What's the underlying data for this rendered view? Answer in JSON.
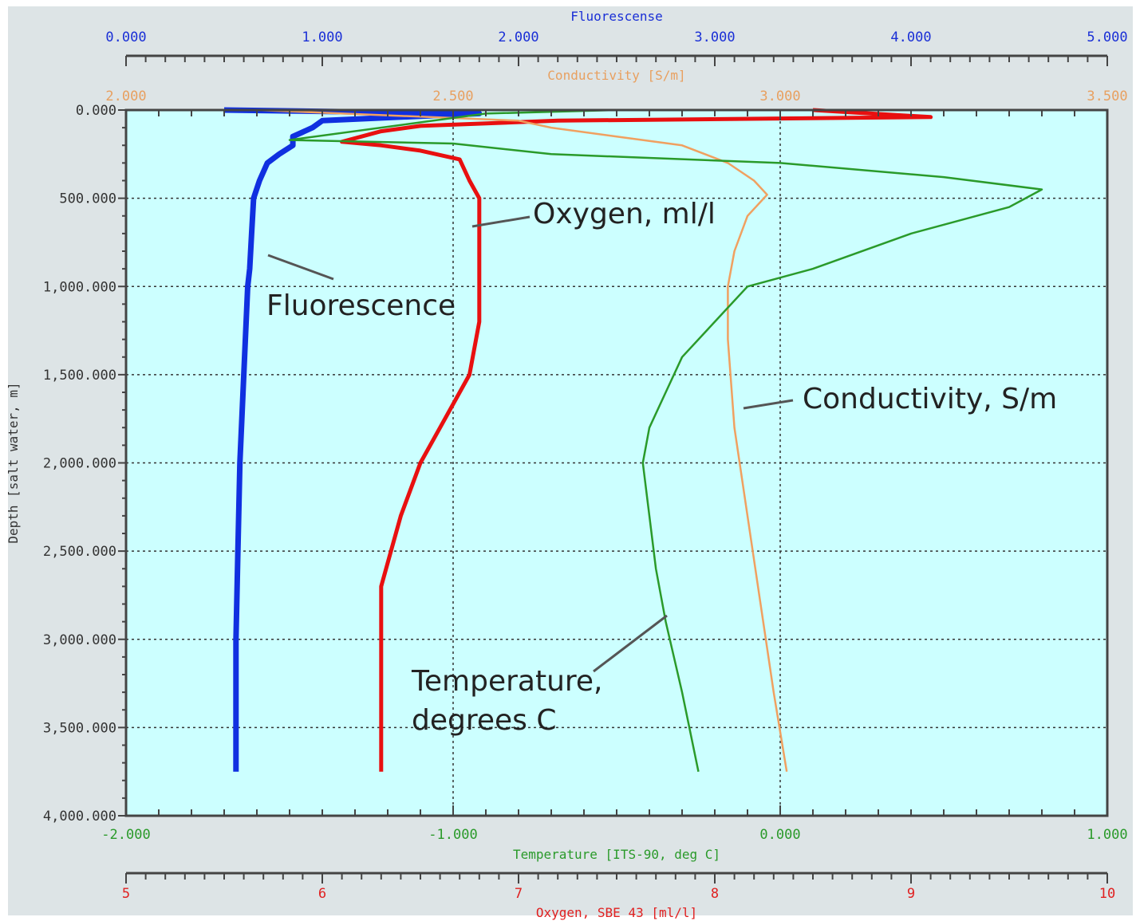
{
  "chart_data": {
    "type": "line",
    "y_axis": {
      "label": "Depth [salt water, m]",
      "range": [
        0,
        4000
      ],
      "inverted": true,
      "ticks": [
        "0.000",
        "500.000",
        "1,000.000",
        "1,500.000",
        "2,000.000",
        "2,500.000",
        "3,000.000",
        "3,500.000",
        "4,000.000"
      ],
      "tick_values": [
        0,
        500,
        1000,
        1500,
        2000,
        2500,
        3000,
        3500,
        4000
      ]
    },
    "x_axes": [
      {
        "id": "fluorescence",
        "label": "Fluorescense",
        "position": "top-outer",
        "range": [
          0,
          5
        ],
        "ticks": [
          "0.000",
          "1.000",
          "2.000",
          "3.000",
          "4.000",
          "5.000"
        ],
        "color": "#1a2fd6"
      },
      {
        "id": "conductivity",
        "label": "Conductivity [S/m]",
        "position": "top-inner",
        "range": [
          2,
          3.5
        ],
        "ticks": [
          "2.000",
          "2.500",
          "3.000",
          "3.500"
        ],
        "color": "#e8a060"
      },
      {
        "id": "temperature",
        "label": "Temperature [ITS-90, deg C]",
        "position": "bottom-inner",
        "range": [
          -2,
          1
        ],
        "ticks": [
          "-2.000",
          "-1.000",
          "0.000",
          "1.000"
        ],
        "color": "#2a9a2a"
      },
      {
        "id": "oxygen",
        "label": "Oxygen, SBE 43 [ml/l]",
        "position": "bottom-outer",
        "range": [
          5,
          10
        ],
        "ticks": [
          "5",
          "6",
          "7",
          "8",
          "9",
          "10"
        ],
        "color": "#e02020"
      }
    ],
    "series": [
      {
        "name": "Fluorescence",
        "axis": "fluorescence",
        "color": "#1030e0",
        "points": [
          [
            0.5,
            0
          ],
          [
            1.8,
            20
          ],
          [
            1.0,
            60
          ],
          [
            0.95,
            100
          ],
          [
            0.85,
            150
          ],
          [
            0.85,
            200
          ],
          [
            0.78,
            250
          ],
          [
            0.72,
            300
          ],
          [
            0.68,
            400
          ],
          [
            0.65,
            500
          ],
          [
            0.64,
            700
          ],
          [
            0.63,
            900
          ],
          [
            0.62,
            1000
          ],
          [
            0.6,
            1500
          ],
          [
            0.58,
            2000
          ],
          [
            0.57,
            2500
          ],
          [
            0.56,
            3000
          ],
          [
            0.56,
            3500
          ],
          [
            0.56,
            3750
          ]
        ]
      },
      {
        "name": "Oxygen, ml/l",
        "axis": "oxygen",
        "color": "#e81010",
        "points": [
          [
            8.5,
            0
          ],
          [
            9.1,
            40
          ],
          [
            7.2,
            60
          ],
          [
            6.5,
            90
          ],
          [
            6.3,
            120
          ],
          [
            6.1,
            180
          ],
          [
            6.3,
            200
          ],
          [
            6.5,
            230
          ],
          [
            6.7,
            280
          ],
          [
            6.75,
            400
          ],
          [
            6.8,
            500
          ],
          [
            6.8,
            700
          ],
          [
            6.8,
            1000
          ],
          [
            6.8,
            1200
          ],
          [
            6.75,
            1500
          ],
          [
            6.6,
            1800
          ],
          [
            6.5,
            2000
          ],
          [
            6.4,
            2300
          ],
          [
            6.35,
            2500
          ],
          [
            6.3,
            2700
          ],
          [
            6.3,
            3000
          ],
          [
            6.3,
            3500
          ],
          [
            6.3,
            3750
          ]
        ]
      },
      {
        "name": "Conductivity, S/m",
        "axis": "conductivity",
        "color": "#f0a060",
        "points": [
          [
            2.2,
            0
          ],
          [
            2.6,
            60
          ],
          [
            2.65,
            100
          ],
          [
            2.75,
            150
          ],
          [
            2.85,
            200
          ],
          [
            2.92,
            300
          ],
          [
            2.96,
            400
          ],
          [
            2.98,
            480
          ],
          [
            2.95,
            600
          ],
          [
            2.93,
            800
          ],
          [
            2.92,
            1000
          ],
          [
            2.92,
            1300
          ],
          [
            2.93,
            1800
          ],
          [
            2.95,
            2300
          ],
          [
            2.97,
            2800
          ],
          [
            2.99,
            3300
          ],
          [
            3.01,
            3750
          ]
        ]
      },
      {
        "name": "Temperature, degrees C",
        "axis": "temperature",
        "color": "#2a9a2a",
        "points": [
          [
            -0.5,
            0
          ],
          [
            -0.9,
            20
          ],
          [
            -1.5,
            170
          ],
          [
            -1.0,
            190
          ],
          [
            -0.7,
            250
          ],
          [
            0,
            300
          ],
          [
            0.5,
            380
          ],
          [
            0.8,
            450
          ],
          [
            0.7,
            550
          ],
          [
            0.4,
            700
          ],
          [
            0.1,
            900
          ],
          [
            -0.1,
            1000
          ],
          [
            -0.2,
            1200
          ],
          [
            -0.3,
            1400
          ],
          [
            -0.35,
            1600
          ],
          [
            -0.4,
            1800
          ],
          [
            -0.42,
            2000
          ],
          [
            -0.4,
            2300
          ],
          [
            -0.38,
            2600
          ],
          [
            -0.35,
            2900
          ],
          [
            -0.3,
            3300
          ],
          [
            -0.25,
            3750
          ]
        ]
      }
    ],
    "annotations": [
      {
        "text": "Oxygen, ml/l",
        "series": "Oxygen, ml/l"
      },
      {
        "text": "Fluorescence",
        "series": "Fluorescence"
      },
      {
        "text": "Conductivity, S/m",
        "series": "Conductivity, S/m"
      },
      {
        "text": "Temperature,",
        "series": "Temperature, degrees C"
      },
      {
        "text": "degrees C",
        "series": "Temperature, degrees C"
      }
    ],
    "grid": true,
    "plot_background": "#ccffff"
  }
}
